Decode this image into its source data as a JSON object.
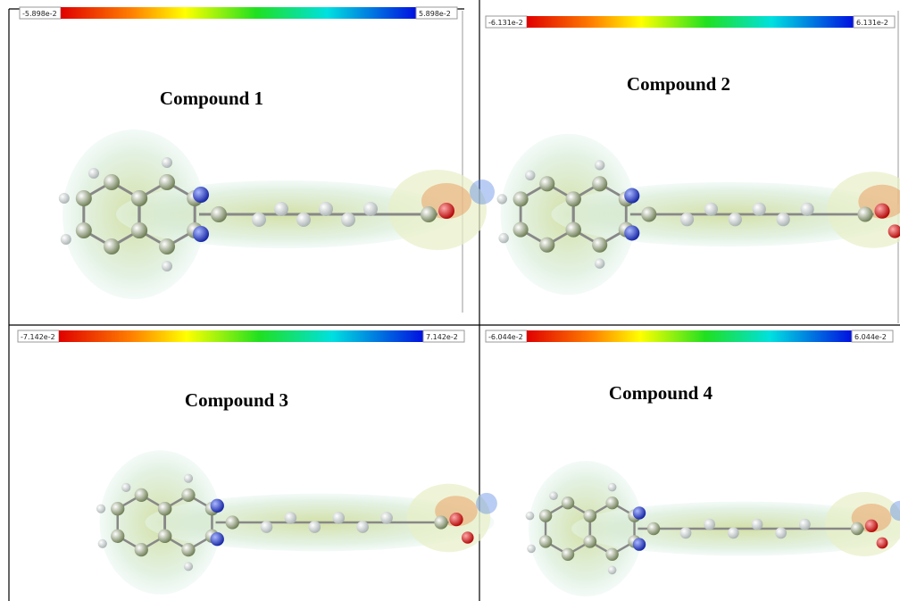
{
  "panels": [
    {
      "scale_min": "-5.898e-2",
      "scale_max": "5.898e-2",
      "title": "Compound 1"
    },
    {
      "scale_min": "-6.131e-2",
      "scale_max": "6.131e-2",
      "title": "Compound 2"
    },
    {
      "scale_min": "-7.142e-2",
      "scale_max": "7.142e-2",
      "title": "Compound 3"
    },
    {
      "scale_min": "-6.044e-2",
      "scale_max": "6.044e-2",
      "title": "Compound 4"
    }
  ]
}
